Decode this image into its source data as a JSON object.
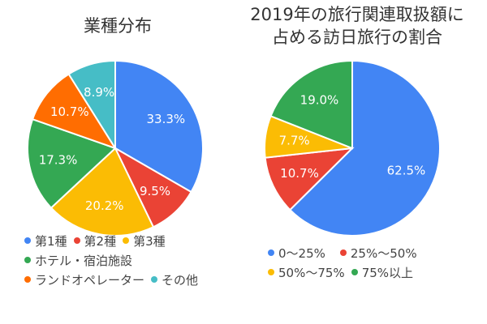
{
  "chart_data": [
    {
      "type": "pie",
      "title": "業種分布",
      "slices": [
        {
          "label": "第1種",
          "value": 33.3,
          "display": "33.3%",
          "color": "#4285F4"
        },
        {
          "label": "第2種",
          "value": 9.5,
          "display": "9.5%",
          "color": "#EA4335"
        },
        {
          "label": "第3種",
          "value": 20.2,
          "display": "20.2%",
          "color": "#FBBC04"
        },
        {
          "label": "ホテル・宿泊施設",
          "value": 17.3,
          "display": "17.3%",
          "color": "#34A853"
        },
        {
          "label": "ランドオペレーター",
          "value": 10.7,
          "display": "10.7%",
          "color": "#FF6D01"
        },
        {
          "label": "その他",
          "value": 8.9,
          "display": "8.9%",
          "color": "#46BDC6"
        }
      ],
      "legend_position": "bottom"
    },
    {
      "type": "pie",
      "title_lines": [
        "2019年の旅行関連取扱額に",
        "占める訪日旅行の割合"
      ],
      "slices": [
        {
          "label": "0～25%",
          "value": 62.5,
          "display": "62.5%",
          "color": "#4285F4"
        },
        {
          "label": "25%～50%",
          "value": 10.7,
          "display": "10.7%",
          "color": "#EA4335"
        },
        {
          "label": "50%～75%",
          "value": 7.7,
          "display": "7.7%",
          "color": "#FBBC04"
        },
        {
          "label": "75%以上",
          "value": 19.0,
          "display": "19.0%",
          "color": "#34A853"
        }
      ],
      "legend_position": "bottom"
    }
  ]
}
